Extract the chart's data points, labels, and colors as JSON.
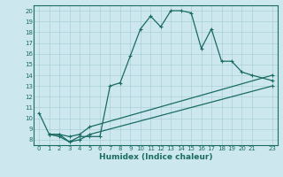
{
  "xlabel": "Humidex (Indice chaleur)",
  "ylabel": "",
  "bg_color": "#cce8ee",
  "line_color": "#1a6b62",
  "grid_color": "#aad0d8",
  "xlim": [
    -0.5,
    23.5
  ],
  "ylim": [
    7.5,
    20.5
  ],
  "xticks": [
    0,
    1,
    2,
    3,
    4,
    5,
    6,
    7,
    8,
    9,
    10,
    11,
    12,
    13,
    14,
    15,
    16,
    17,
    18,
    19,
    20,
    21,
    23
  ],
  "yticks": [
    8,
    9,
    10,
    11,
    12,
    13,
    14,
    15,
    16,
    17,
    18,
    19,
    20
  ],
  "line1_x": [
    0,
    1,
    2,
    3,
    4,
    5,
    6,
    7,
    8,
    9,
    10,
    11,
    12,
    13,
    14,
    15,
    16,
    17,
    18,
    19,
    20,
    21,
    23
  ],
  "line1_y": [
    10.5,
    8.5,
    8.5,
    7.8,
    8.3,
    8.3,
    8.3,
    13.0,
    13.3,
    15.8,
    18.3,
    19.5,
    18.5,
    20.0,
    20.0,
    19.8,
    16.5,
    18.3,
    15.3,
    15.3,
    14.3,
    14.0,
    13.5
  ],
  "line2_x": [
    1,
    2,
    3,
    4,
    5,
    23
  ],
  "line2_y": [
    8.5,
    8.5,
    8.3,
    8.5,
    9.2,
    14.0
  ],
  "line3_x": [
    1,
    2,
    3,
    4,
    5,
    23
  ],
  "line3_y": [
    8.5,
    8.3,
    7.8,
    8.0,
    8.5,
    13.0
  ],
  "xlabel_fontsize": 6.5,
  "tick_fontsize": 5.0
}
